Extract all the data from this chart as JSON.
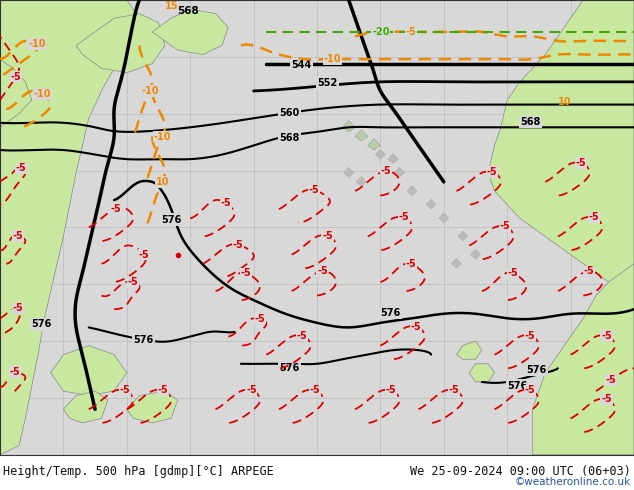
{
  "title_left": "Height/Temp. 500 hPa [gdmp][°C] ARPEGE",
  "title_right": "We 25-09-2024 09:00 UTC (06+03)",
  "copyright": "©weatheronline.co.uk",
  "ocean_color": "#d8d8d8",
  "land_color": "#c8e8a0",
  "land_edge_color": "#888888",
  "grid_color": "#bbbbbb",
  "title_color": "#111111",
  "title_fontsize": 8.5,
  "copyright_color": "#2255aa",
  "copyright_fontsize": 7.5,
  "black_contour_color": "#000000",
  "red_contour_color": "#dd0000",
  "orange_contour_color": "#ee8800",
  "green_contour_color": "#44aa00",
  "fig_width": 6.34,
  "fig_height": 4.9,
  "dpi": 100
}
